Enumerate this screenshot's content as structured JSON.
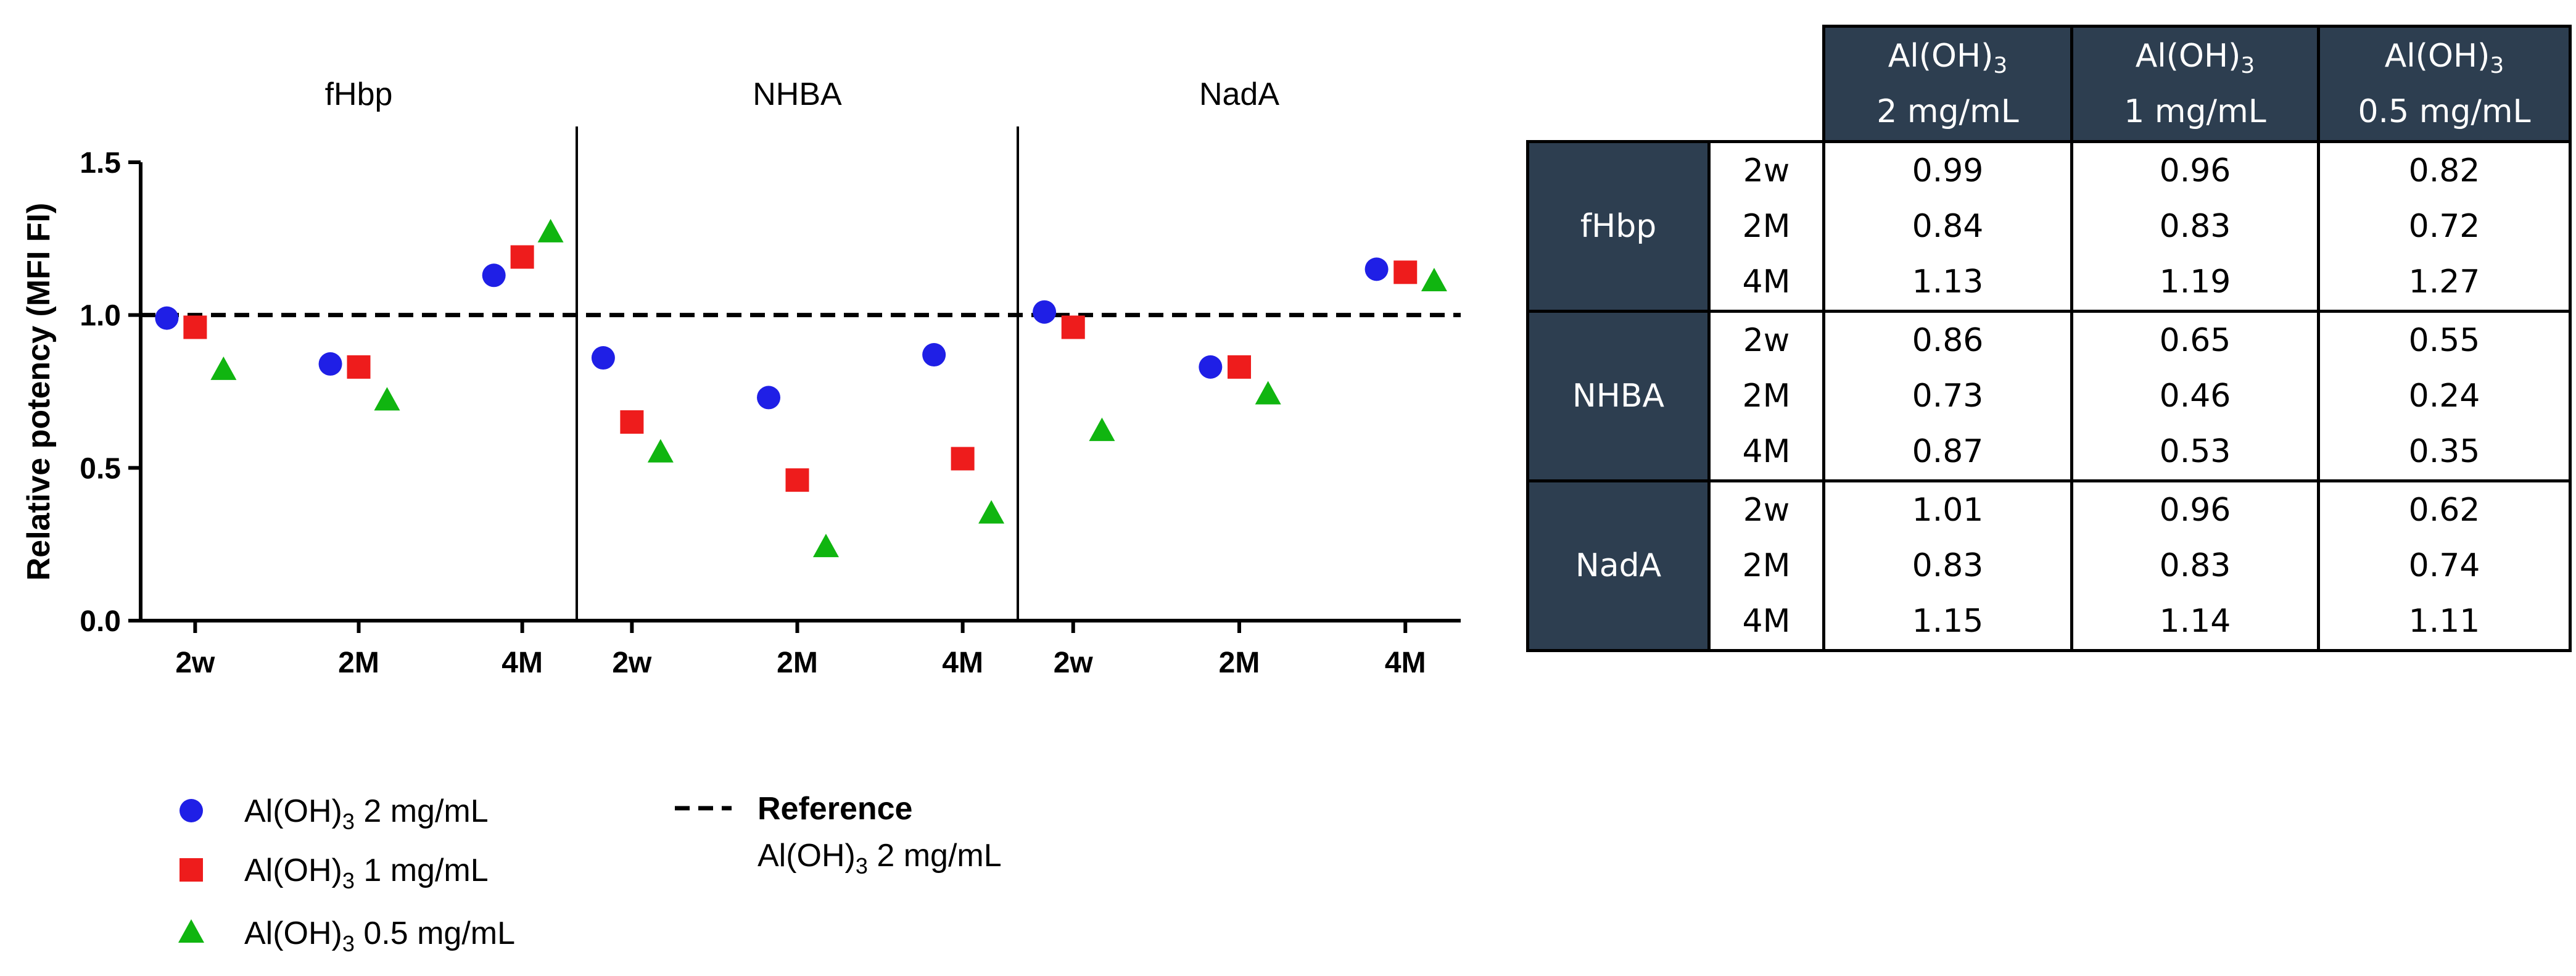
{
  "chart_data": {
    "type": "scatter",
    "ylabel": "Relative potency (MFI FI)",
    "ylim": [
      0,
      1.5
    ],
    "yticks": [
      "0.0",
      "0.5",
      "1.0",
      "1.5"
    ],
    "reference_line": 1.0,
    "panels": [
      "fHbp",
      "NHBA",
      "NadA"
    ],
    "timepoints": [
      "2w",
      "2M",
      "4M"
    ],
    "series": [
      {
        "name": "Al(OH)3 2 mg/mL",
        "marker": "circle",
        "color": "#1f1fe6",
        "values": {
          "fHbp": [
            0.99,
            0.84,
            1.13
          ],
          "NHBA": [
            0.86,
            0.73,
            0.87
          ],
          "NadA": [
            1.01,
            0.83,
            1.15
          ]
        }
      },
      {
        "name": "Al(OH)3 1 mg/mL",
        "marker": "square",
        "color": "#ee1c1c",
        "values": {
          "fHbp": [
            0.96,
            0.83,
            1.19
          ],
          "NHBA": [
            0.65,
            0.46,
            0.53
          ],
          "NadA": [
            0.96,
            0.83,
            1.14
          ]
        }
      },
      {
        "name": "Al(OH)3 0.5 mg/mL",
        "marker": "triangle",
        "color": "#10b510",
        "values": {
          "fHbp": [
            0.82,
            0.72,
            1.27
          ],
          "NHBA": [
            0.55,
            0.24,
            0.35
          ],
          "NadA": [
            0.62,
            0.74,
            1.11
          ]
        }
      }
    ]
  },
  "legend": {
    "items": [
      {
        "pre": "Al(OH)",
        "sub": "3",
        "post": " 2 mg/mL"
      },
      {
        "pre": "Al(OH)",
        "sub": "3",
        "post": " 1 mg/mL"
      },
      {
        "pre": "Al(OH)",
        "sub": "3",
        "post": " 0.5 mg/mL"
      }
    ],
    "reference_title": "Reference",
    "reference_pre": "Al(OH)",
    "reference_sub": "3",
    "reference_post": "  2 mg/mL"
  },
  "table": {
    "headers": [
      {
        "line1": "Al(OH)",
        "sub": "3",
        "line2": "2 mg/mL"
      },
      {
        "line1": "Al(OH)",
        "sub": "3",
        "line2": "1 mg/mL"
      },
      {
        "line1": "Al(OH)",
        "sub": "3",
        "line2": "0.5 mg/mL"
      }
    ],
    "groups": [
      {
        "name": "fHbp",
        "rows": [
          {
            "tp": "2w",
            "vals": [
              "0.99",
              "0.96",
              "0.82"
            ]
          },
          {
            "tp": "2M",
            "vals": [
              "0.84",
              "0.83",
              "0.72"
            ]
          },
          {
            "tp": "4M",
            "vals": [
              "1.13",
              "1.19",
              "1.27"
            ]
          }
        ]
      },
      {
        "name": "NHBA",
        "rows": [
          {
            "tp": "2w",
            "vals": [
              "0.86",
              "0.65",
              "0.55"
            ]
          },
          {
            "tp": "2M",
            "vals": [
              "0.73",
              "0.46",
              "0.24"
            ]
          },
          {
            "tp": "4M",
            "vals": [
              "0.87",
              "0.53",
              "0.35"
            ]
          }
        ]
      },
      {
        "name": "NadA",
        "rows": [
          {
            "tp": "2w",
            "vals": [
              "1.01",
              "0.96",
              "0.62"
            ]
          },
          {
            "tp": "2M",
            "vals": [
              "0.83",
              "0.83",
              "0.74"
            ]
          },
          {
            "tp": "4M",
            "vals": [
              "1.15",
              "1.14",
              "1.11"
            ]
          }
        ]
      }
    ]
  }
}
